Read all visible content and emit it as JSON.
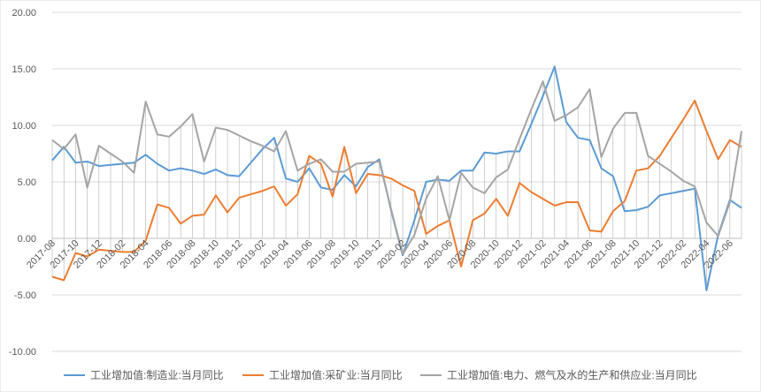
{
  "chart_data": {
    "type": "line",
    "title": "",
    "xlabel": "",
    "ylabel": "",
    "ylim": [
      -10,
      20
    ],
    "yticks": [
      "20.00",
      "15.00",
      "10.00",
      "5.00",
      "0.00",
      "-5.00",
      "-10.00"
    ],
    "grid": "horizontal",
    "drop_lines": true,
    "legend_position": "bottom",
    "x": [
      "2017-08",
      "2017-09",
      "2017-10",
      "2017-11",
      "2017-12",
      "2018-01",
      "2018-02",
      "2018-03",
      "2018-04",
      "2018-05",
      "2018-06",
      "2018-07",
      "2018-08",
      "2018-09",
      "2018-10",
      "2018-11",
      "2018-12",
      "2019-01",
      "2019-02",
      "2019-03",
      "2019-04",
      "2019-05",
      "2019-06",
      "2019-07",
      "2019-08",
      "2019-09",
      "2019-10",
      "2019-11",
      "2019-12",
      "2020-01",
      "2020-02",
      "2020-03",
      "2020-04",
      "2020-05",
      "2020-06",
      "2020-07",
      "2020-08",
      "2020-09",
      "2020-10",
      "2020-11",
      "2020-12",
      "2021-01",
      "2021-02",
      "2021-03",
      "2021-04",
      "2021-05",
      "2021-06",
      "2021-07",
      "2021-08",
      "2021-09",
      "2021-10",
      "2021-11",
      "2021-12",
      "2022-01",
      "2022-02",
      "2022-03",
      "2022-04",
      "2022-05",
      "2022-06",
      "2022-07"
    ],
    "x_tick_labels": [
      "2017-08",
      "2017-10",
      "2017-12",
      "2018-02",
      "2018-04",
      "2018-06",
      "2018-08",
      "2018-10",
      "2018-12",
      "2019-02",
      "2019-04",
      "2019-06",
      "2019-08",
      "2019-10",
      "2019-12",
      "2020-02",
      "2020-04",
      "2020-06",
      "2020-08",
      "2020-10",
      "2020-12",
      "2021-02",
      "2021-04",
      "2021-06",
      "2021-08",
      "2021-10",
      "2021-12",
      "2022-02",
      "2022-04",
      "2022-06"
    ],
    "series": [
      {
        "name": "工业增加值:制造业:当月同比",
        "color": "#5b9bd5",
        "values": [
          6.9,
          8.1,
          6.7,
          6.8,
          6.4,
          6.5,
          6.6,
          6.7,
          7.4,
          6.6,
          6.0,
          6.2,
          6.0,
          5.7,
          6.1,
          5.6,
          5.5,
          6.7,
          7.9,
          8.9,
          5.3,
          5.0,
          6.2,
          4.5,
          4.3,
          5.6,
          4.6,
          6.3,
          7.0,
          2.5,
          -1.5,
          1.6,
          5.0,
          5.2,
          5.1,
          6.0,
          6.0,
          7.6,
          7.5,
          7.7,
          7.7,
          10.1,
          12.6,
          15.2,
          10.3,
          8.9,
          8.7,
          6.2,
          5.5,
          2.4,
          2.5,
          2.8,
          3.8,
          4.0,
          4.2,
          4.4,
          -4.6,
          0.3,
          3.4,
          2.7
        ]
      },
      {
        "name": "工业增加值:采矿业:当月同比",
        "color": "#ed7d31",
        "values": [
          -3.4,
          -3.7,
          -1.3,
          -1.6,
          -1.0,
          -1.1,
          -1.2,
          -1.2,
          -0.2,
          3.0,
          2.7,
          1.3,
          2.0,
          2.1,
          3.8,
          2.3,
          3.6,
          3.9,
          4.2,
          4.6,
          2.9,
          3.9,
          7.3,
          6.6,
          3.7,
          8.1,
          4.0,
          5.7,
          5.6,
          5.3,
          4.7,
          4.2,
          0.4,
          1.1,
          1.6,
          -2.5,
          1.6,
          2.2,
          3.5,
          2.0,
          4.9,
          4.1,
          3.5,
          2.9,
          3.2,
          3.2,
          0.7,
          0.6,
          2.4,
          3.3,
          6.0,
          6.2,
          7.3,
          8.9,
          10.5,
          12.2,
          9.5,
          7.0,
          8.7,
          8.1
        ]
      },
      {
        "name": "工业增加值:电力、燃气及水的生产和供应业:当月同比",
        "color": "#a5a5a5",
        "values": [
          8.7,
          7.9,
          9.2,
          4.5,
          8.2,
          7.5,
          6.8,
          5.8,
          12.1,
          9.2,
          9.0,
          9.9,
          11.0,
          6.8,
          9.8,
          9.6,
          9.1,
          8.6,
          8.2,
          7.7,
          9.5,
          6.0,
          6.6,
          7.0,
          5.9,
          5.9,
          6.6,
          6.7,
          6.8,
          2.6,
          -1.4,
          0.3,
          3.5,
          5.5,
          1.6,
          5.8,
          4.5,
          4.0,
          5.4,
          6.1,
          8.8,
          11.4,
          13.9,
          10.4,
          10.9,
          11.6,
          13.2,
          7.2,
          9.7,
          11.1,
          11.1,
          7.3,
          6.6,
          5.9,
          5.1,
          4.6,
          1.4,
          0.2,
          3.2,
          9.5
        ]
      }
    ]
  }
}
